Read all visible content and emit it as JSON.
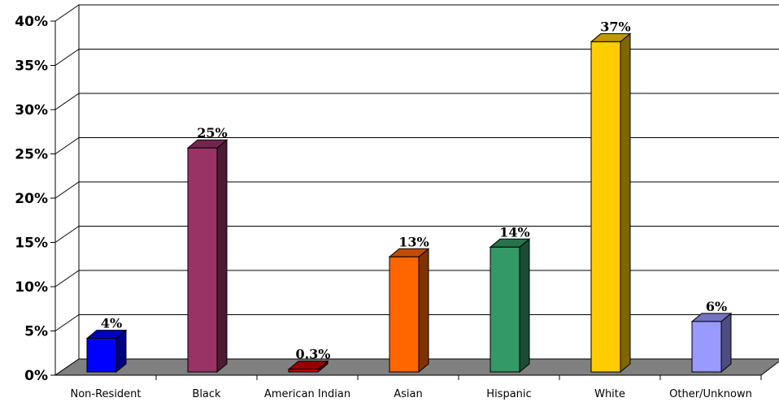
{
  "chart_data": {
    "type": "bar",
    "title": "",
    "xlabel": "",
    "ylabel": "",
    "ylim": [
      0,
      40
    ],
    "y_ticks": [
      "0%",
      "5%",
      "10%",
      "15%",
      "20%",
      "25%",
      "30%",
      "35%",
      "40%"
    ],
    "grid": true,
    "legend": "none",
    "categories": [
      "Non-Resident",
      "Black",
      "American Indian",
      "Asian",
      "Hispanic",
      "White",
      "Other/Unknown"
    ],
    "values": [
      3.8,
      25.3,
      0.3,
      13,
      14.1,
      37.3,
      5.7
    ],
    "data_labels": [
      "4%",
      "25%",
      "0.3%",
      "13%",
      "14%",
      "37%",
      "6%"
    ],
    "colors": [
      "#0000FF",
      "#993366",
      "#CC0000",
      "#FF6600",
      "#339966",
      "#FFCC00",
      "#9999FF"
    ],
    "floor_color": "#808080"
  }
}
